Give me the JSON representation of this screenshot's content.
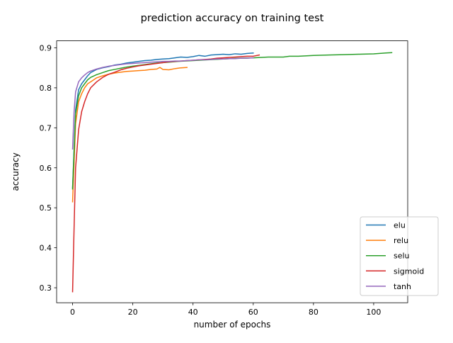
{
  "chart_data": {
    "type": "line",
    "title": "prediction accuracy on training test",
    "xlabel": "number of epochs",
    "ylabel": "accuracy",
    "xlim": [
      -5.3,
      111.3
    ],
    "ylim": [
      0.2625,
      0.9175
    ],
    "xticks": [
      0,
      20,
      40,
      60,
      80,
      100
    ],
    "yticks": [
      0.3,
      0.4,
      0.5,
      0.6,
      0.7,
      0.8,
      0.9
    ],
    "grid": false,
    "legend_position": "lower right",
    "series": [
      {
        "name": "elu",
        "color": "#1f77b4",
        "x": [
          0,
          1,
          2,
          3,
          4,
          5,
          6,
          8,
          10,
          12,
          14,
          16,
          18,
          20,
          22,
          24,
          26,
          28,
          30,
          32,
          34,
          36,
          38,
          40,
          42,
          44,
          46,
          48,
          50,
          52,
          54,
          56,
          58,
          60
        ],
        "y": [
          0.55,
          0.745,
          0.795,
          0.81,
          0.82,
          0.83,
          0.838,
          0.846,
          0.85,
          0.853,
          0.857,
          0.859,
          0.862,
          0.864,
          0.866,
          0.868,
          0.869,
          0.871,
          0.872,
          0.873,
          0.875,
          0.877,
          0.876,
          0.878,
          0.881,
          0.879,
          0.882,
          0.883,
          0.884,
          0.883,
          0.885,
          0.884,
          0.886,
          0.887
        ]
      },
      {
        "name": "relu",
        "color": "#ff7f0e",
        "x": [
          0,
          1,
          2,
          3,
          4,
          5,
          6,
          8,
          10,
          12,
          14,
          16,
          18,
          20,
          22,
          24,
          26,
          28,
          29,
          30,
          32,
          34,
          36,
          38
        ],
        "y": [
          0.515,
          0.71,
          0.765,
          0.785,
          0.8,
          0.81,
          0.815,
          0.825,
          0.83,
          0.834,
          0.837,
          0.839,
          0.841,
          0.842,
          0.843,
          0.844,
          0.846,
          0.847,
          0.851,
          0.846,
          0.845,
          0.848,
          0.85,
          0.851
        ]
      },
      {
        "name": "selu",
        "color": "#2ca02c",
        "x": [
          0,
          1,
          2,
          3,
          4,
          5,
          6,
          8,
          10,
          12,
          14,
          16,
          18,
          20,
          22,
          24,
          26,
          28,
          30,
          32,
          35,
          40,
          45,
          50,
          55,
          60,
          65,
          70,
          72,
          75,
          80,
          85,
          90,
          95,
          100,
          104,
          106
        ],
        "y": [
          0.547,
          0.735,
          0.78,
          0.8,
          0.81,
          0.82,
          0.826,
          0.833,
          0.838,
          0.843,
          0.846,
          0.849,
          0.852,
          0.854,
          0.856,
          0.858,
          0.86,
          0.862,
          0.863,
          0.864,
          0.866,
          0.868,
          0.87,
          0.872,
          0.874,
          0.875,
          0.877,
          0.877,
          0.879,
          0.879,
          0.881,
          0.882,
          0.883,
          0.884,
          0.885,
          0.887,
          0.888
        ]
      },
      {
        "name": "sigmoid",
        "color": "#d62728",
        "x": [
          0,
          0.5,
          1,
          2,
          3,
          4,
          5,
          6,
          8,
          10,
          12,
          14,
          16,
          18,
          20,
          22,
          24,
          26,
          28,
          30,
          32,
          34,
          36,
          38,
          40,
          42,
          44,
          46,
          48,
          50,
          52,
          54,
          56,
          58,
          60,
          62
        ],
        "y": [
          0.29,
          0.45,
          0.6,
          0.695,
          0.74,
          0.765,
          0.785,
          0.8,
          0.815,
          0.826,
          0.834,
          0.839,
          0.845,
          0.849,
          0.852,
          0.855,
          0.857,
          0.859,
          0.861,
          0.863,
          0.865,
          0.866,
          0.867,
          0.868,
          0.869,
          0.87,
          0.871,
          0.872,
          0.874,
          0.875,
          0.876,
          0.877,
          0.878,
          0.879,
          0.879,
          0.882
        ]
      },
      {
        "name": "tanh",
        "color": "#9467bd",
        "x": [
          0,
          0.5,
          1,
          2,
          3,
          4,
          5,
          6,
          8,
          10,
          12,
          14,
          16,
          18,
          20,
          22,
          24,
          26,
          28,
          30,
          32,
          34,
          36,
          38,
          40,
          42,
          44,
          46,
          48,
          50,
          52,
          54,
          56,
          58,
          60
        ],
        "y": [
          0.647,
          0.74,
          0.79,
          0.815,
          0.825,
          0.832,
          0.838,
          0.842,
          0.847,
          0.851,
          0.854,
          0.856,
          0.858,
          0.86,
          0.861,
          0.862,
          0.863,
          0.864,
          0.865,
          0.866,
          0.866,
          0.867,
          0.867,
          0.868,
          0.869,
          0.87,
          0.87,
          0.871,
          0.872,
          0.872,
          0.873,
          0.873,
          0.874,
          0.874,
          0.875
        ]
      }
    ]
  }
}
